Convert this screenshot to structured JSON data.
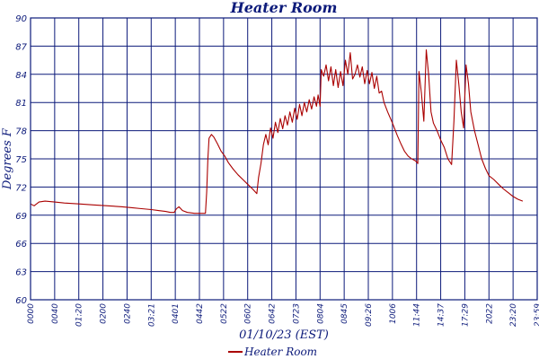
{
  "chart_data": {
    "type": "line",
    "title": "Heater Room",
    "xlabel": "01/10/23 (EST)",
    "ylabel": "Degrees F",
    "ylim": [
      60,
      90
    ],
    "yticks": [
      "60",
      "63",
      "66",
      "69",
      "72",
      "75",
      "78",
      "81",
      "84",
      "87",
      "90"
    ],
    "xticks": [
      "0000",
      "0040",
      "01:20",
      "0200",
      "0240",
      "03:21",
      "0401",
      "0442",
      "0522",
      "0602",
      "0642",
      "0723",
      "0804",
      "0845",
      "09:26",
      "1006",
      "11:44",
      "14:37",
      "17:29",
      "2022",
      "23:20",
      "23:59"
    ],
    "grid": true,
    "legend_position": "bottom-center",
    "series": [
      {
        "name": "Heater Room",
        "color": "#aa0000",
        "points": [
          [
            0,
            70.2
          ],
          [
            0.15,
            70.0
          ],
          [
            0.35,
            70.4
          ],
          [
            0.6,
            70.5
          ],
          [
            1.0,
            70.4
          ],
          [
            1.4,
            70.3
          ],
          [
            2.0,
            70.2
          ],
          [
            2.6,
            70.1
          ],
          [
            3.2,
            70.0
          ],
          [
            3.8,
            69.9
          ],
          [
            4.2,
            69.8
          ],
          [
            4.6,
            69.7
          ],
          [
            5.0,
            69.6
          ],
          [
            5.3,
            69.5
          ],
          [
            5.6,
            69.4
          ],
          [
            5.8,
            69.3
          ],
          [
            5.95,
            69.3
          ],
          [
            6.05,
            69.7
          ],
          [
            6.15,
            69.9
          ],
          [
            6.3,
            69.5
          ],
          [
            6.5,
            69.3
          ],
          [
            6.8,
            69.2
          ],
          [
            7.1,
            69.2
          ],
          [
            7.25,
            69.2
          ],
          [
            7.3,
            71.5
          ],
          [
            7.35,
            75.0
          ],
          [
            7.4,
            77.2
          ],
          [
            7.5,
            77.6
          ],
          [
            7.6,
            77.3
          ],
          [
            7.75,
            76.6
          ],
          [
            7.9,
            75.8
          ],
          [
            8.05,
            75.3
          ],
          [
            8.2,
            74.6
          ],
          [
            8.4,
            73.9
          ],
          [
            8.6,
            73.3
          ],
          [
            8.8,
            72.8
          ],
          [
            9.0,
            72.3
          ],
          [
            9.2,
            71.8
          ],
          [
            9.38,
            71.3
          ],
          [
            9.45,
            73.0
          ],
          [
            9.55,
            74.5
          ],
          [
            9.65,
            76.5
          ],
          [
            9.75,
            77.6
          ],
          [
            9.85,
            76.5
          ],
          [
            9.95,
            78.3
          ],
          [
            10.05,
            77.2
          ],
          [
            10.15,
            78.9
          ],
          [
            10.25,
            77.8
          ],
          [
            10.35,
            79.3
          ],
          [
            10.45,
            78.2
          ],
          [
            10.55,
            79.6
          ],
          [
            10.65,
            78.6
          ],
          [
            10.75,
            80.0
          ],
          [
            10.85,
            78.9
          ],
          [
            10.95,
            80.4
          ],
          [
            11.05,
            79.2
          ],
          [
            11.15,
            80.8
          ],
          [
            11.25,
            79.6
          ],
          [
            11.35,
            81.0
          ],
          [
            11.45,
            80.0
          ],
          [
            11.55,
            81.3
          ],
          [
            11.65,
            80.3
          ],
          [
            11.75,
            81.6
          ],
          [
            11.85,
            80.6
          ],
          [
            11.92,
            81.8
          ],
          [
            12.0,
            80.6
          ],
          [
            12.05,
            84.5
          ],
          [
            12.15,
            83.8
          ],
          [
            12.25,
            85.0
          ],
          [
            12.35,
            83.3
          ],
          [
            12.45,
            84.8
          ],
          [
            12.55,
            82.8
          ],
          [
            12.65,
            84.5
          ],
          [
            12.75,
            82.6
          ],
          [
            12.85,
            84.3
          ],
          [
            12.95,
            82.8
          ],
          [
            13.05,
            85.5
          ],
          [
            13.15,
            84.0
          ],
          [
            13.25,
            86.3
          ],
          [
            13.35,
            83.5
          ],
          [
            13.45,
            84.0
          ],
          [
            13.55,
            85.0
          ],
          [
            13.65,
            83.7
          ],
          [
            13.75,
            84.8
          ],
          [
            13.85,
            83.0
          ],
          [
            13.95,
            84.4
          ],
          [
            14.05,
            83.0
          ],
          [
            14.15,
            84.2
          ],
          [
            14.25,
            82.5
          ],
          [
            14.35,
            83.8
          ],
          [
            14.45,
            82.0
          ],
          [
            14.55,
            82.2
          ],
          [
            14.65,
            81.0
          ],
          [
            14.8,
            80.0
          ],
          [
            15.0,
            78.8
          ],
          [
            15.2,
            77.5
          ],
          [
            15.35,
            76.6
          ],
          [
            15.5,
            75.8
          ],
          [
            15.65,
            75.3
          ],
          [
            15.8,
            75.0
          ],
          [
            15.95,
            74.8
          ],
          [
            16.05,
            74.5
          ],
          [
            16.1,
            84.3
          ],
          [
            16.2,
            82.0
          ],
          [
            16.3,
            79.0
          ],
          [
            16.4,
            86.6
          ],
          [
            16.5,
            84.0
          ],
          [
            16.6,
            80.0
          ],
          [
            16.7,
            78.8
          ],
          [
            16.85,
            78.0
          ],
          [
            17.0,
            77.0
          ],
          [
            17.15,
            76.2
          ],
          [
            17.3,
            75.0
          ],
          [
            17.45,
            74.4
          ],
          [
            17.55,
            79.0
          ],
          [
            17.65,
            85.5
          ],
          [
            17.75,
            83.0
          ],
          [
            17.85,
            80.0
          ],
          [
            17.95,
            78.3
          ],
          [
            18.05,
            85.0
          ],
          [
            18.15,
            83.0
          ],
          [
            18.25,
            80.0
          ],
          [
            18.4,
            78.0
          ],
          [
            18.55,
            76.5
          ],
          [
            18.7,
            75.0
          ],
          [
            18.85,
            74.0
          ],
          [
            19.0,
            73.2
          ],
          [
            19.2,
            72.8
          ],
          [
            19.4,
            72.3
          ],
          [
            19.6,
            71.8
          ],
          [
            19.8,
            71.4
          ],
          [
            20.0,
            71.0
          ],
          [
            20.2,
            70.7
          ],
          [
            20.4,
            70.5
          ]
        ]
      }
    ]
  }
}
